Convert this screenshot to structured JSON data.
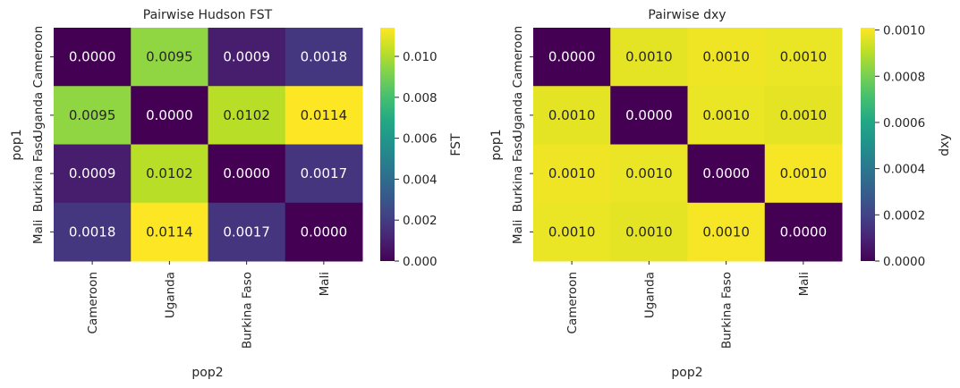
{
  "chart_data": [
    {
      "type": "heatmap",
      "title": "Pairwise Hudson FST",
      "xlabel": "pop2",
      "ylabel": "pop1",
      "x_categories": [
        "Cameroon",
        "Uganda",
        "Burkina Faso",
        "Mali"
      ],
      "y_categories": [
        "Cameroon",
        "Uganda",
        "Burkina Faso",
        "Mali"
      ],
      "values": [
        [
          0.0,
          0.0095,
          0.0009,
          0.0018
        ],
        [
          0.0095,
          0.0,
          0.0102,
          0.0114
        ],
        [
          0.0009,
          0.0102,
          0.0,
          0.0017
        ],
        [
          0.0018,
          0.0114,
          0.0017,
          0.0
        ]
      ],
      "annotations": [
        [
          "0.0000",
          "0.0095",
          "0.0009",
          "0.0018"
        ],
        [
          "0.0095",
          "0.0000",
          "0.0102",
          "0.0114"
        ],
        [
          "0.0009",
          "0.0102",
          "0.0000",
          "0.0017"
        ],
        [
          "0.0018",
          "0.0114",
          "0.0017",
          "0.0000"
        ]
      ],
      "colormap": "viridis",
      "vmin": 0.0,
      "vmax": 0.0114,
      "colorbar_label": "FST",
      "colorbar_ticks": [
        0.0,
        0.002,
        0.004,
        0.006,
        0.008,
        0.01
      ],
      "colorbar_tick_labels": [
        "0.000",
        "0.002",
        "0.004",
        "0.006",
        "0.008",
        "0.010"
      ]
    },
    {
      "type": "heatmap",
      "title": "Pairwise dxy",
      "xlabel": "pop2",
      "ylabel": "pop1",
      "x_categories": [
        "Cameroon",
        "Uganda",
        "Burkina Faso",
        "Mali"
      ],
      "y_categories": [
        "Cameroon",
        "Uganda",
        "Burkina Faso",
        "Mali"
      ],
      "values": [
        [
          0.0,
          0.00097,
          0.00099,
          0.00098
        ],
        [
          0.00097,
          0.0,
          0.00098,
          0.00097
        ],
        [
          0.00099,
          0.00098,
          0.0,
          0.001
        ],
        [
          0.00098,
          0.00097,
          0.001,
          0.0
        ]
      ],
      "annotations": [
        [
          "0.0000",
          "0.0010",
          "0.0010",
          "0.0010"
        ],
        [
          "0.0010",
          "0.0000",
          "0.0010",
          "0.0010"
        ],
        [
          "0.0010",
          "0.0010",
          "0.0000",
          "0.0010"
        ],
        [
          "0.0010",
          "0.0010",
          "0.0010",
          "0.0000"
        ]
      ],
      "colormap": "viridis",
      "vmin": 0.0,
      "vmax": 0.00101,
      "colorbar_label": "dxy",
      "colorbar_ticks": [
        0.0,
        0.0002,
        0.0004,
        0.0006,
        0.0008,
        0.001
      ],
      "colorbar_tick_labels": [
        "0.0000",
        "0.0002",
        "0.0004",
        "0.0006",
        "0.0008",
        "0.0010"
      ]
    }
  ]
}
